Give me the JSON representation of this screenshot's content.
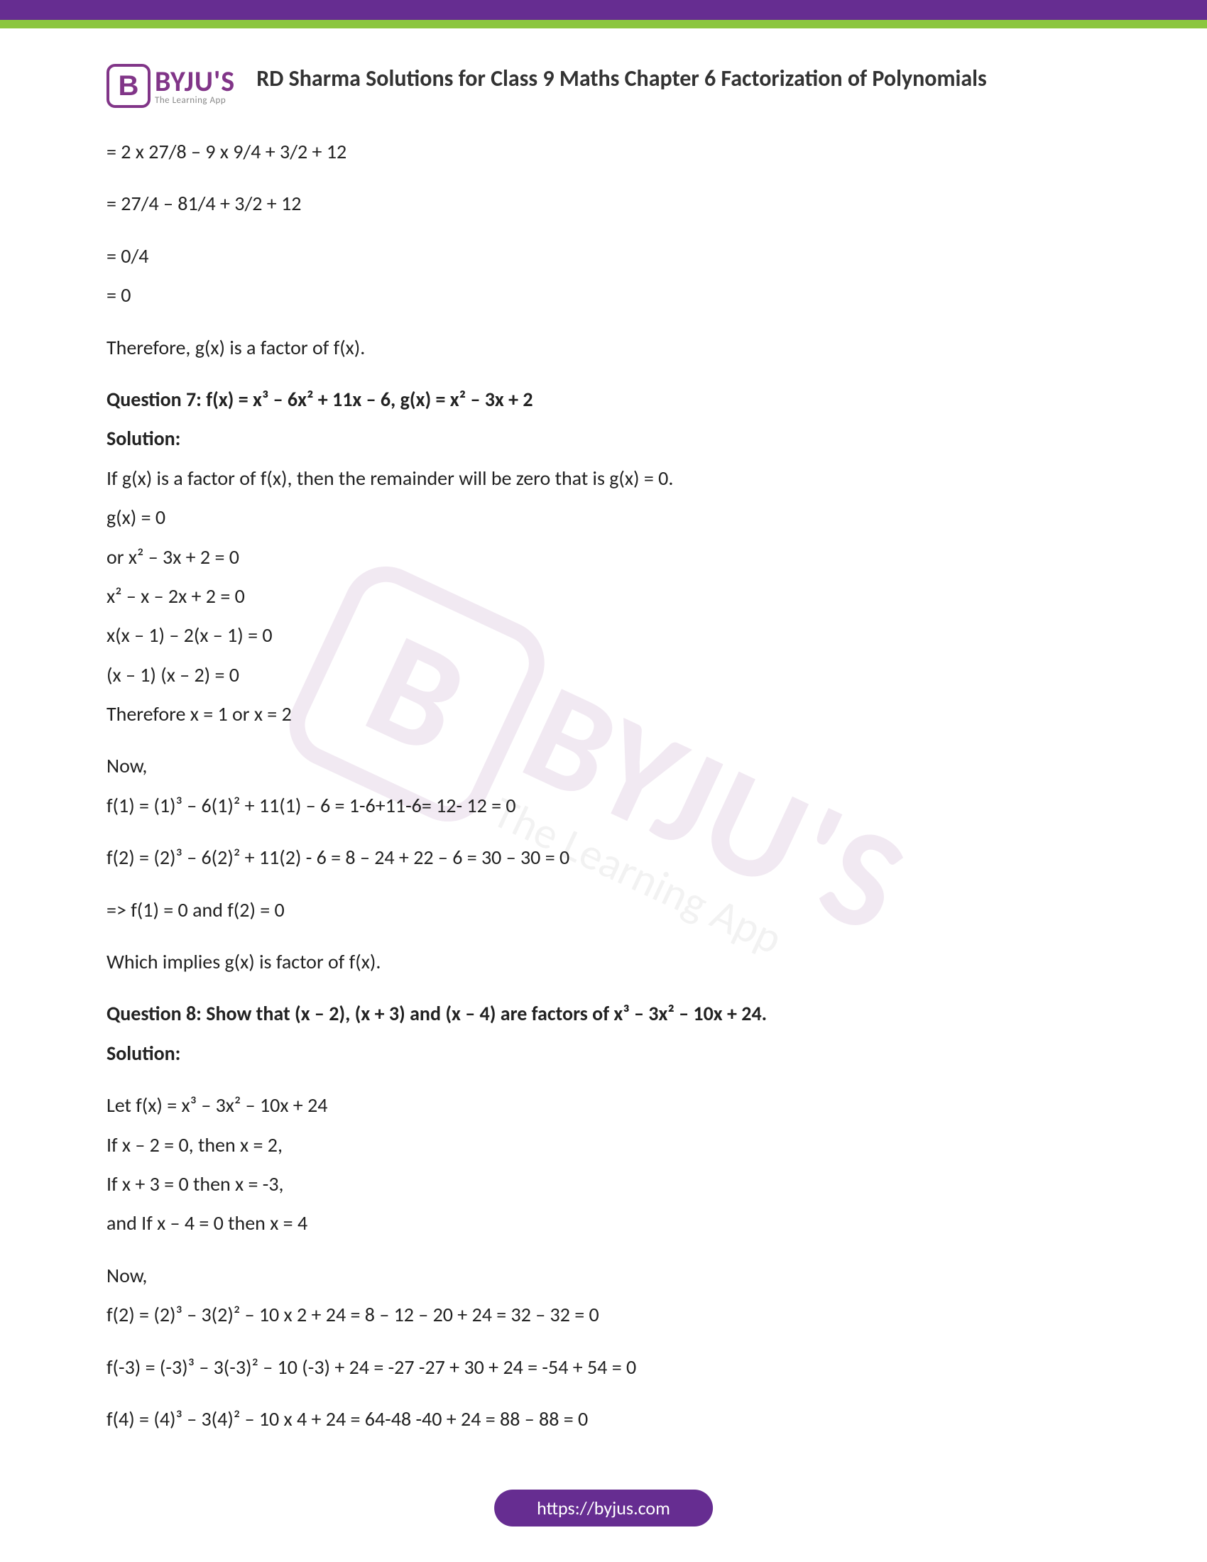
{
  "colors": {
    "purple": "#662d91",
    "green": "#8cc63f",
    "logo_purple": "#813588",
    "text": "#222",
    "sub_gray": "#888"
  },
  "typography": {
    "body_fontsize": 28,
    "title_fontsize": 32,
    "logo_main_fontsize": 40,
    "logo_sub_fontsize": 13,
    "footer_fontsize": 26
  },
  "logo": {
    "letter": "B",
    "main": "BYJU'S",
    "sub": "The Learning App"
  },
  "title": "RD Sharma Solutions for Class 9 Maths Chapter 6 Factorization of Polynomials",
  "lines": {
    "l1": "= 2 x 27/8 – 9 x 9/4 + 3/2 + 12",
    "l2": "= 27/4 – 81/4 + 3/2 + 12",
    "l3": "= 0/4",
    "l4": "= 0",
    "l5": "Therefore, g(x) is a factor of f(x).",
    "q7_title": "Question 7: f(x) = x³ – 6x² + 11x – 6, g(x) = x² – 3x + 2",
    "q7_sol": "Solution:",
    "q7_1": "If g(x) is a factor of f(x), then the remainder will be zero that is g(x) = 0.",
    "q7_2": "g(x) = 0",
    "q7_3": "or x² – 3x + 2 = 0",
    "q7_4": " x² – x – 2x + 2 = 0",
    "q7_5": "x(x – 1) – 2(x – 1) = 0",
    "q7_6": " (x – 1) (x – 2) = 0",
    "q7_7": "Therefore x = 1 or x = 2",
    "q7_8": "Now,",
    "q7_9": "f(1) = (1)³ – 6(1)² + 11(1) – 6 = 1-6+11-6= 12- 12 = 0",
    "q7_10": "f(2) = (2)³ – 6(2)² + 11(2) - 6 = 8 – 24 + 22 – 6 = 30 – 30 = 0",
    "q7_11": "=> f(1) = 0 and f(2) = 0",
    "q7_12": "Which implies g(x) is factor of f(x).",
    "q8_title": "Question 8: Show that (x – 2), (x + 3) and (x – 4) are factors of x³ – 3x² – 10x + 24.",
    "q8_sol": "Solution:",
    "q8_1": "Let f(x) = x³ – 3x² – 10x + 24",
    "q8_2": "If  x – 2 = 0, then x = 2,",
    "q8_3": "If  x + 3 = 0 then x = -3,",
    "q8_4": "and If x – 4 = 0 then x = 4",
    "q8_5": "Now,",
    "q8_6": " f(2) = (2)³ – 3(2)² – 10 x 2 + 24 = 8 – 12 – 20 + 24 = 32 – 32 = 0",
    "q8_7": "f(-3) = (-3)³ – 3(-3)² – 10 (-3) + 24 = -27 -27 + 30 + 24 = -54 + 54 = 0",
    "q8_8": "f(4) = (4)³ – 3(4)² – 10 x 4 + 24 = 64-48 -40 + 24 = 88 – 88 = 0"
  },
  "footer": "https://byjus.com"
}
